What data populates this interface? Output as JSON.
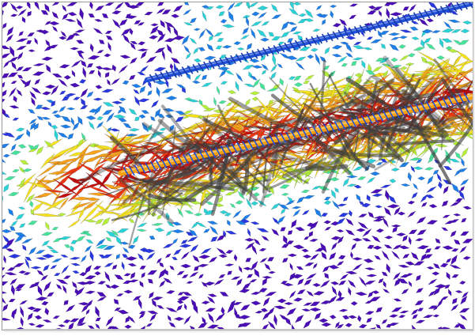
{
  "scene": {
    "kind": "tensor-glyph-field",
    "glyph_shape": "elongated-diamond",
    "colormap": [
      "#4b0db8",
      "#2a38e0",
      "#1f7fe8",
      "#2bd2d6",
      "#46e39a",
      "#b6ee3c",
      "#f6e21e",
      "#f7a21a",
      "#ee3a12",
      "#c40f0f"
    ],
    "tube_colors": {
      "upper": "#1f4fd8",
      "lower": "#f5a10f"
    },
    "overlay_color": "#3d3d3d"
  }
}
